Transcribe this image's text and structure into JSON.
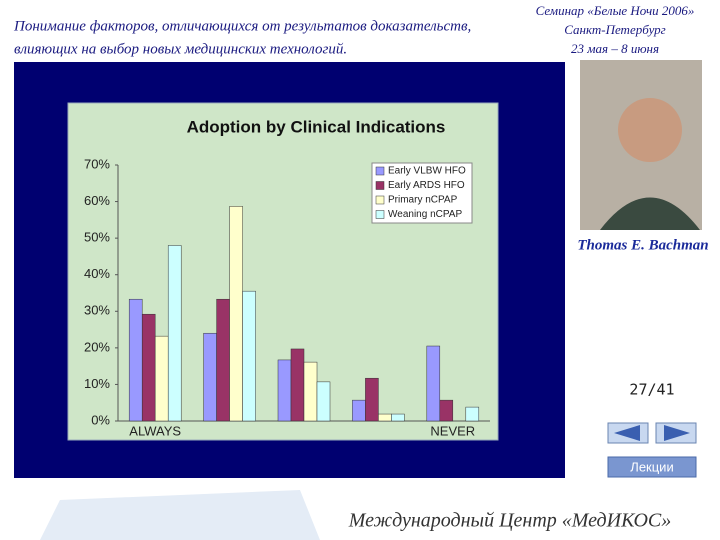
{
  "header": {
    "title_lines": [
      "Понимание факторов, отличающихся от результатов доказательств,",
      "влияющих на выбор новых медицинских технологий."
    ],
    "seminar_lines": [
      "Семинар «Белые Ночи 2006»",
      "Санкт-Петербург",
      "23 мая – 8 июня"
    ]
  },
  "speaker": "Thomas E. Bachman",
  "page_counter": "27/41",
  "lectures_button": "Лекции",
  "footer": "Международный Центр «МедИКОС»",
  "chart_data": {
    "type": "bar",
    "title": "Adoption by Clinical Indications",
    "categories": [
      "ALWAYS",
      null,
      null,
      null,
      "NEVER"
    ],
    "series": [
      {
        "name": "Early VLBW HFO",
        "color": "#9999ff",
        "values": [
          33.3,
          24,
          16.7,
          5.7,
          20.5
        ]
      },
      {
        "name": "Early ARDS HFO",
        "color": "#993366",
        "values": [
          29.2,
          33.3,
          19.7,
          11.7,
          5.7
        ]
      },
      {
        "name": "Primary nCPAP",
        "color": "#ffffcc",
        "values": [
          23.2,
          58.7,
          16.1,
          1.9,
          0
        ]
      },
      {
        "name": "Weaning nCPAP",
        "color": "#ccffff",
        "values": [
          48,
          35.5,
          10.7,
          1.9,
          3.8
        ]
      }
    ],
    "ylim": [
      0,
      70
    ],
    "yticks": [
      {
        "value": 0,
        "label": "0%"
      },
      {
        "value": 10,
        "label": "10%"
      },
      {
        "value": 20,
        "label": "20%"
      },
      {
        "value": 30,
        "label": "30%"
      },
      {
        "value": 40,
        "label": "40%"
      },
      {
        "value": 50,
        "label": "50%"
      },
      {
        "value": 60,
        "label": "60%"
      },
      {
        "value": 70,
        "label": "70%"
      }
    ],
    "legend": "upper right"
  }
}
